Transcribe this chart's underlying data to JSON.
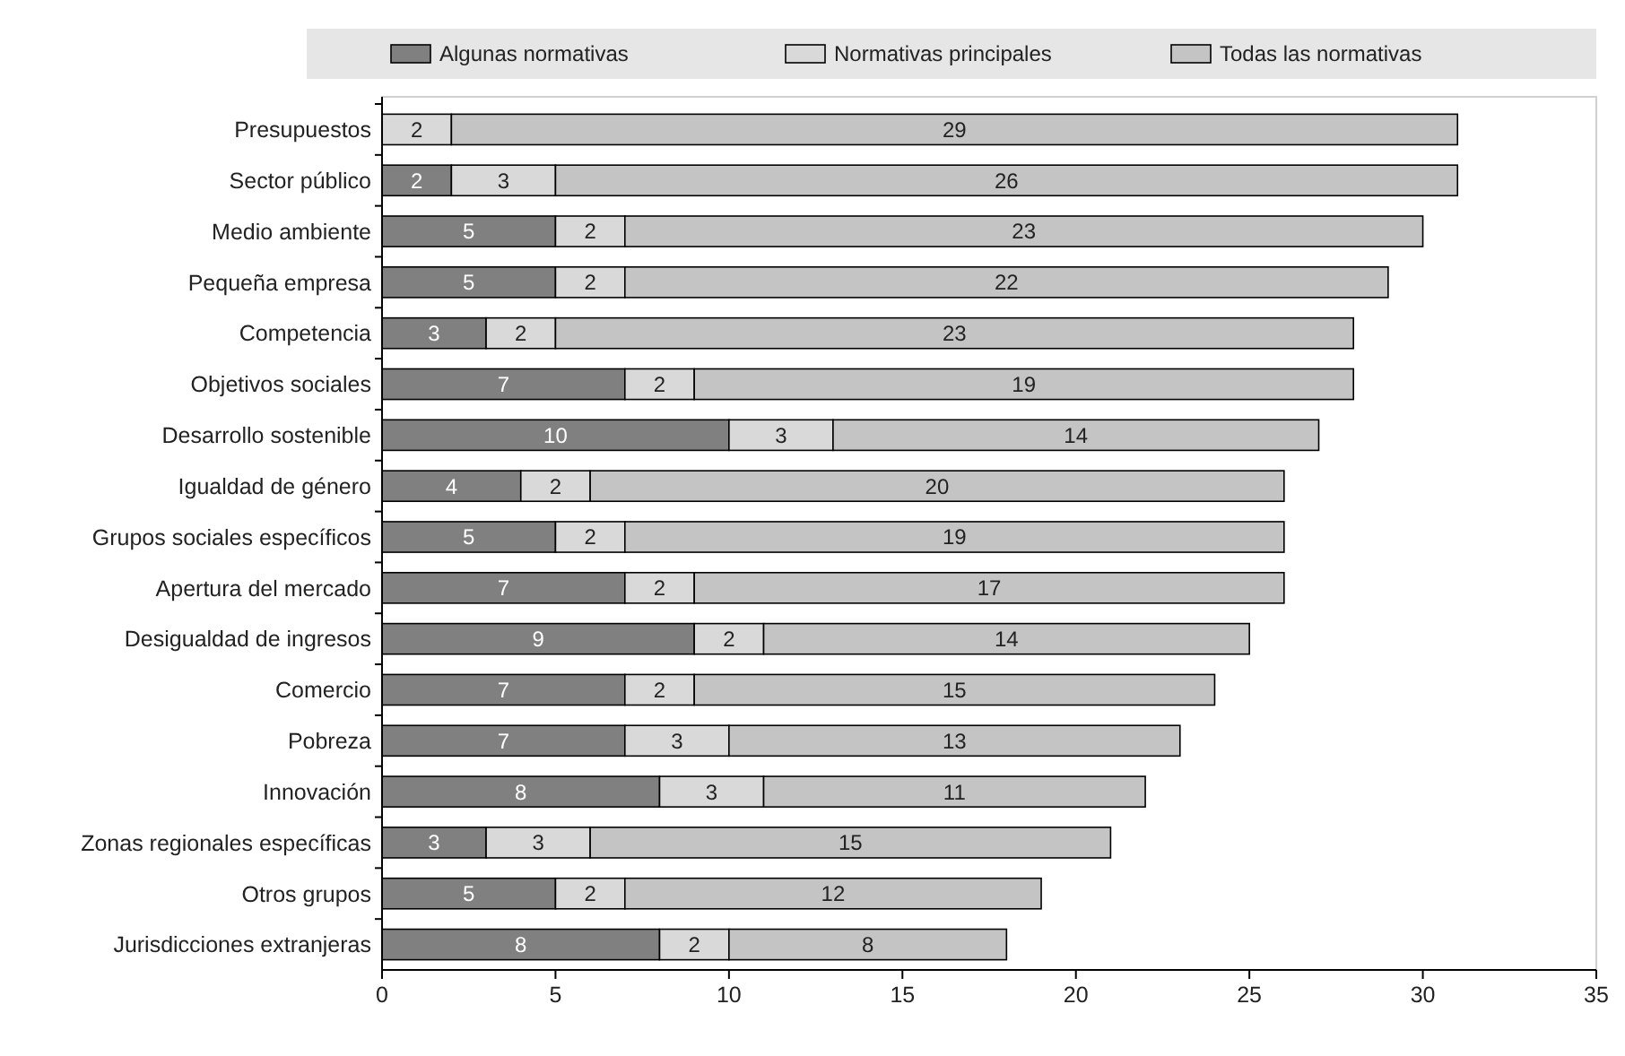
{
  "chart_data": {
    "type": "bar",
    "orientation": "horizontal",
    "stacked": true,
    "data_labels": true,
    "legend": "top",
    "grid": false,
    "categories": [
      "Presupuestos",
      "Sector público",
      "Medio ambiente",
      "Pequeña empresa",
      "Competencia",
      "Objetivos sociales",
      "Desarrollo sostenible",
      "Igualdad de género",
      "Grupos sociales específicos",
      "Apertura del mercado",
      "Desigualdad de ingresos",
      "Comercio",
      "Pobreza",
      "Innovación",
      "Zonas regionales específicas",
      "Otros grupos",
      "Jurisdicciones extranjeras"
    ],
    "series": [
      {
        "name": "Algunas normativas",
        "color": "#808080",
        "values": [
          null,
          2,
          5,
          5,
          3,
          7,
          10,
          4,
          5,
          7,
          9,
          7,
          7,
          8,
          3,
          5,
          8
        ]
      },
      {
        "name": "Normativas principales",
        "color": "#d9d9d9",
        "values": [
          2,
          3,
          2,
          2,
          2,
          2,
          3,
          2,
          2,
          2,
          2,
          2,
          3,
          3,
          3,
          2,
          2
        ]
      },
      {
        "name": "Todas las normativas",
        "color": "#c4c4c4",
        "values": [
          29,
          26,
          23,
          22,
          23,
          19,
          14,
          20,
          19,
          17,
          14,
          15,
          13,
          11,
          15,
          12,
          8
        ]
      }
    ],
    "xlim": [
      0,
      35
    ],
    "xticks": [
      0,
      5,
      10,
      15,
      20,
      25,
      30,
      35
    ]
  }
}
